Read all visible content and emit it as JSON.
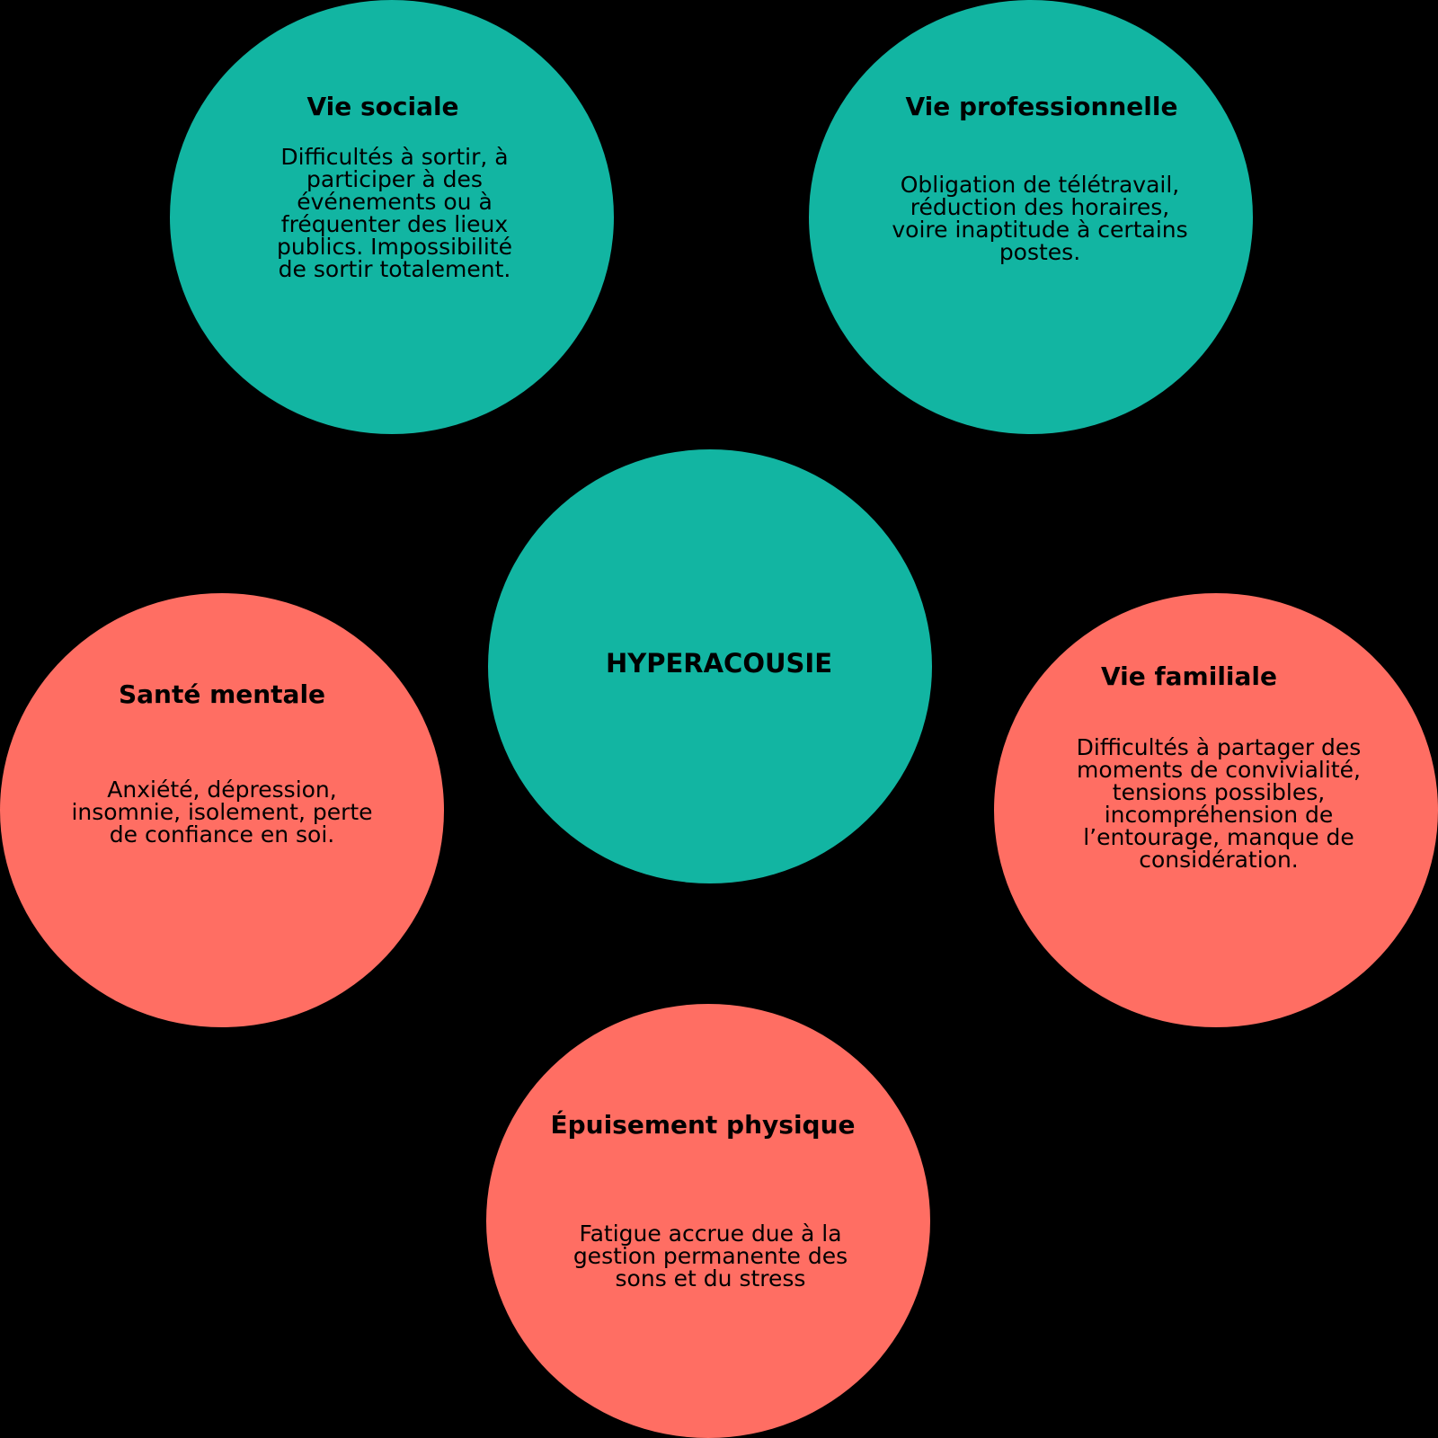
{
  "colors": {
    "background": "#000000",
    "teal": "#12b5a2",
    "coral": "#ff6e63"
  },
  "center": {
    "title": "HYPERACOUSIE"
  },
  "nodes": [
    {
      "title": "Vie sociale",
      "text": "Difficultés à sortir, à participer à des événements ou à fréquenter des lieux publics. Impossibilité de sortir totalement."
    },
    {
      "title": "Vie professionnelle",
      "text": "Obligation de télétravail, réduction des horaires, voire inaptitude à certains postes."
    },
    {
      "title": "Santé mentale",
      "text": "Anxiété, dépression, insomnie, isolement, perte de confiance en soi."
    },
    {
      "title": "Vie familiale",
      "text": "Difficultés à partager des moments de convivialité, tensions possibles, incompréhension de l’entourage, manque de considération."
    },
    {
      "title": "Épuisement physique",
      "text": "Fatigue accrue due à la gestion permanente des sons et du stress"
    }
  ]
}
